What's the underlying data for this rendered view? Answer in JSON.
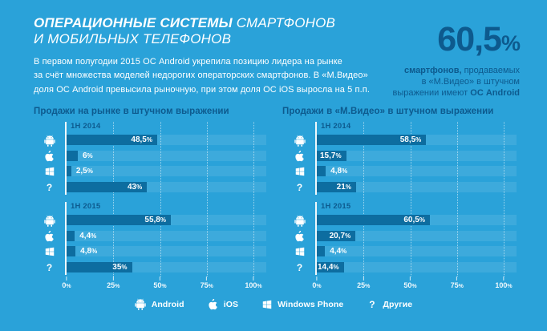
{
  "page": {
    "background_color": "#2AA2D9",
    "bar_color": "#0D6DA0",
    "dark_text_color": "#0D5A8E"
  },
  "header": {
    "title_bold": "ОПЕРАЦИОННЫЕ СИСТЕМЫ",
    "title_light": " СМАРТФОНОВ",
    "title_line2": "И МОБИЛЬНЫХ ТЕЛЕФОНОВ",
    "paragraph": "В первом полугодии 2015 ОС Android укрепила позицию лидера на рынке\nза счёт множества моделей недорогих операторских смартфонов. В «М.Видео»\nдоля ОС Android превысила рыночную, при этом доля ОС iOS выросла на 5 п.п."
  },
  "stat": {
    "value": "60,5%",
    "caption_segments": [
      {
        "text": "смартфонов,",
        "bold": true
      },
      {
        "text": " продаваемых\nв «М.Видео» в штучном\nвыражении имеют ",
        "bold": false
      },
      {
        "text": "ОС Android",
        "bold": true
      }
    ]
  },
  "chart_data": [
    {
      "type": "bar",
      "title": "Продажи на рынке в штучном выражении",
      "orientation": "horizontal",
      "xlim": [
        0,
        100
      ],
      "tick_values": [
        0,
        25,
        50,
        75,
        100
      ],
      "tick_labels": [
        "0%",
        "25%",
        "50%",
        "75%",
        "100%"
      ],
      "categories": [
        "Android",
        "iOS",
        "Windows Phone",
        "Другие"
      ],
      "category_slugs": [
        "android",
        "ios",
        "windows-phone",
        "others"
      ],
      "category_icons": [
        "android-icon",
        "apple-icon",
        "windows-icon",
        "question-icon"
      ],
      "groups": [
        {
          "label": "1Н 2014",
          "values": [
            48.5,
            6,
            2.5,
            43
          ],
          "labels": [
            "48,5%",
            "6%",
            "2,5%",
            "43%"
          ]
        },
        {
          "label": "1Н 2015",
          "values": [
            55.8,
            4.4,
            4.8,
            35
          ],
          "labels": [
            "55,8%",
            "4,4%",
            "4,8%",
            "35%"
          ]
        }
      ]
    },
    {
      "type": "bar",
      "title": "Продажи в «М.Видео» в штучном выражении",
      "orientation": "horizontal",
      "xlim": [
        0,
        100
      ],
      "tick_values": [
        0,
        25,
        50,
        75,
        100
      ],
      "tick_labels": [
        "0%",
        "25%",
        "50%",
        "75%",
        "100%"
      ],
      "categories": [
        "Android",
        "iOS",
        "Windows Phone",
        "Другие"
      ],
      "category_slugs": [
        "android",
        "ios",
        "windows-phone",
        "others"
      ],
      "category_icons": [
        "android-icon",
        "apple-icon",
        "windows-icon",
        "question-icon"
      ],
      "groups": [
        {
          "label": "1Н 2014",
          "values": [
            58.5,
            15.7,
            4.8,
            21
          ],
          "labels": [
            "58,5%",
            "15,7%",
            "4,8%",
            "21%"
          ]
        },
        {
          "label": "1Н 2015",
          "values": [
            60.5,
            20.7,
            4.4,
            14.4
          ],
          "labels": [
            "60,5%",
            "20,7%",
            "4,4%",
            "14,4%"
          ]
        }
      ]
    }
  ],
  "legend": {
    "items": [
      {
        "icon": "android-icon",
        "label": "Android"
      },
      {
        "icon": "apple-icon",
        "label": "iOS"
      },
      {
        "icon": "windows-icon",
        "label": "Windows Phone"
      },
      {
        "icon": "question-icon",
        "label": "Другие"
      }
    ]
  }
}
